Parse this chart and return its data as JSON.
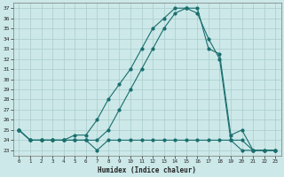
{
  "title": "",
  "xlabel": "Humidex (Indice chaleur)",
  "bg_color": "#cce8e8",
  "grid_color": "#aacccc",
  "line_color": "#1a6e6e",
  "xlim": [
    -0.5,
    23.5
  ],
  "ylim": [
    22.5,
    37.5
  ],
  "xticks": [
    0,
    1,
    2,
    3,
    4,
    5,
    6,
    7,
    8,
    9,
    10,
    11,
    12,
    13,
    14,
    15,
    16,
    17,
    18,
    19,
    20,
    21,
    22,
    23
  ],
  "yticks": [
    23,
    24,
    25,
    26,
    27,
    28,
    29,
    30,
    31,
    32,
    33,
    34,
    35,
    36,
    37
  ],
  "line1_x": [
    0,
    1,
    2,
    3,
    4,
    5,
    6,
    7,
    8,
    9,
    10,
    11,
    12,
    13,
    14,
    15,
    16,
    17,
    18,
    19,
    20,
    21,
    22,
    23
  ],
  "line1_y": [
    25.0,
    24.0,
    24.0,
    24.0,
    24.0,
    24.0,
    24.0,
    23.0,
    24.0,
    24.0,
    24.0,
    24.0,
    24.0,
    24.0,
    24.0,
    24.0,
    24.0,
    24.0,
    24.0,
    24.0,
    24.0,
    23.0,
    23.0,
    23.0
  ],
  "line2_x": [
    0,
    1,
    2,
    3,
    4,
    5,
    6,
    7,
    8,
    9,
    10,
    11,
    12,
    13,
    14,
    15,
    16,
    17,
    18,
    19,
    20,
    21,
    22,
    23
  ],
  "line2_y": [
    25.0,
    24.0,
    24.0,
    24.0,
    24.0,
    24.5,
    24.5,
    26.0,
    28.0,
    29.5,
    31.0,
    33.0,
    35.0,
    36.0,
    37.0,
    37.0,
    37.0,
    33.0,
    32.5,
    24.5,
    25.0,
    23.0,
    23.0,
    23.0
  ],
  "line3_x": [
    0,
    1,
    2,
    3,
    4,
    5,
    6,
    7,
    8,
    9,
    10,
    11,
    12,
    13,
    14,
    15,
    16,
    17,
    18,
    19,
    20,
    21,
    22,
    23
  ],
  "line3_y": [
    25.0,
    24.0,
    24.0,
    24.0,
    24.0,
    24.0,
    24.0,
    24.0,
    25.0,
    27.0,
    29.0,
    31.0,
    33.0,
    35.0,
    36.5,
    37.0,
    36.5,
    34.0,
    32.0,
    24.0,
    23.0,
    23.0,
    23.0,
    23.0
  ]
}
